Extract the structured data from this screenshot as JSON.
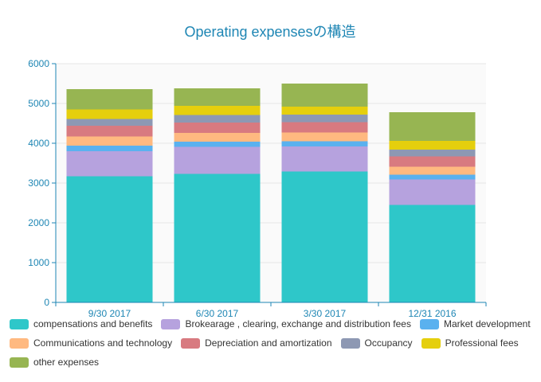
{
  "chart_data": {
    "type": "bar",
    "stacked": true,
    "title": "Operating expensesの構造",
    "categories": [
      "9/30 2017",
      "6/30 2017",
      "3/30 2017",
      "12/31 2016"
    ],
    "ylim": [
      0,
      6000
    ],
    "yticks": [
      0,
      1000,
      2000,
      3000,
      4000,
      5000,
      6000
    ],
    "grid": true,
    "legend_position": "bottom",
    "series": [
      {
        "name": "compensations and benefits",
        "color": "#2ec7c9",
        "values": [
          3170,
          3230,
          3290,
          2450
        ]
      },
      {
        "name": "Brokearage , clearing, exchange and  distribution fees",
        "color": "#b6a2de",
        "values": [
          630,
          680,
          630,
          640
        ]
      },
      {
        "name": "Market development",
        "color": "#5ab1ef",
        "values": [
          140,
          130,
          130,
          120
        ]
      },
      {
        "name": "Communications and technology",
        "color": "#ffb980",
        "values": [
          230,
          220,
          220,
          200
        ]
      },
      {
        "name": "Depreciation and amortization",
        "color": "#d87a80",
        "values": [
          270,
          260,
          260,
          260
        ]
      },
      {
        "name": "Occupancy",
        "color": "#8d98b3",
        "values": [
          170,
          190,
          190,
          170
        ]
      },
      {
        "name": "Professional fees",
        "color": "#e5cf0d",
        "values": [
          240,
          230,
          200,
          220
        ]
      },
      {
        "name": "other expenses",
        "color": "#97b552",
        "values": [
          510,
          440,
          580,
          720
        ]
      }
    ]
  }
}
